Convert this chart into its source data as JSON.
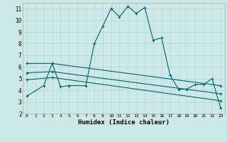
{
  "xlabel": "Humidex (Indice chaleur)",
  "bg_color": "#cce8e8",
  "grid_color": "#b8d4d4",
  "line_color": "#006666",
  "xlim": [
    -0.5,
    23.5
  ],
  "ylim": [
    2,
    11.5
  ],
  "xticks": [
    0,
    1,
    2,
    3,
    4,
    5,
    6,
    7,
    8,
    9,
    10,
    11,
    12,
    13,
    14,
    15,
    16,
    17,
    18,
    19,
    20,
    21,
    22,
    23
  ],
  "yticks": [
    2,
    3,
    4,
    5,
    6,
    7,
    8,
    9,
    10,
    11
  ],
  "series": [
    {
      "x": [
        0,
        2,
        3,
        4,
        5,
        7,
        8,
        9,
        10,
        11,
        12,
        13,
        14,
        15,
        16,
        17,
        18,
        19,
        20,
        21,
        22,
        23
      ],
      "y": [
        3.5,
        4.4,
        6.3,
        4.3,
        4.4,
        4.4,
        8.0,
        9.5,
        11.0,
        10.3,
        11.2,
        10.6,
        11.1,
        8.3,
        8.5,
        5.3,
        4.1,
        4.1,
        4.5,
        4.5,
        5.0,
        2.5
      ]
    },
    {
      "x": [
        0,
        3,
        23
      ],
      "y": [
        6.3,
        6.3,
        4.4
      ]
    },
    {
      "x": [
        0,
        3,
        23
      ],
      "y": [
        5.5,
        5.6,
        3.7
      ]
    },
    {
      "x": [
        0,
        3,
        23
      ],
      "y": [
        4.9,
        5.1,
        3.1
      ]
    }
  ]
}
